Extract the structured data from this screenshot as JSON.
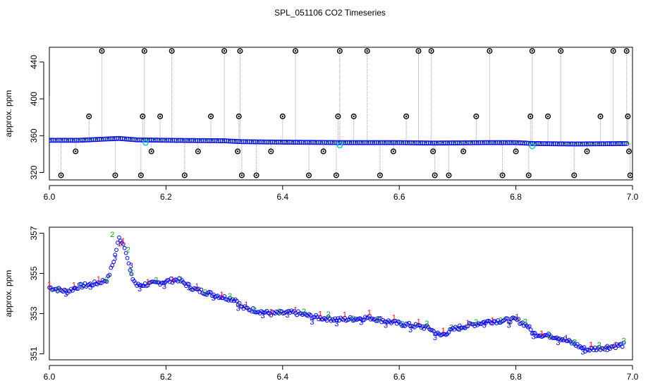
{
  "title": "SPL_051106  CO2 Timeseries",
  "colors": {
    "raw_marker": "#000000",
    "raw_drop": "#999999",
    "series_blue": "#0000ff",
    "series_green": "#00b000",
    "series_red": "#ff0000",
    "series_cyan": "#00cccc"
  },
  "chart_data": [
    {
      "type": "scatter",
      "title": "",
      "xlabel": "",
      "ylabel": "approx. ppm",
      "xlim": [
        6.0,
        7.0
      ],
      "ylim": [
        312,
        456
      ],
      "xticks": [
        6.0,
        6.2,
        6.4,
        6.6,
        6.8,
        7.0
      ],
      "xtick_labels": [
        "6.0",
        "6.2",
        "6.4",
        "6.6",
        "6.8",
        "7.0"
      ],
      "yticks": [
        320,
        360,
        400,
        440
      ],
      "ytick_labels": [
        "320",
        "360",
        "400",
        "440"
      ],
      "grid": false,
      "baseline": [
        {
          "x": 6.0,
          "y": 355
        },
        {
          "x": 6.05,
          "y": 355
        },
        {
          "x": 6.1,
          "y": 356.5
        },
        {
          "x": 6.12,
          "y": 357
        },
        {
          "x": 6.15,
          "y": 355.5
        },
        {
          "x": 6.2,
          "y": 355
        },
        {
          "x": 6.3,
          "y": 354.5
        },
        {
          "x": 6.33,
          "y": 353.5
        },
        {
          "x": 6.4,
          "y": 353
        },
        {
          "x": 6.5,
          "y": 352.5
        },
        {
          "x": 6.6,
          "y": 352.5
        },
        {
          "x": 6.66,
          "y": 352
        },
        {
          "x": 6.75,
          "y": 352.5
        },
        {
          "x": 6.8,
          "y": 352.5
        },
        {
          "x": 6.83,
          "y": 351.5
        },
        {
          "x": 6.9,
          "y": 351
        },
        {
          "x": 6.99,
          "y": 351.5
        }
      ],
      "outliers": [
        {
          "x": 6.02,
          "y": 317
        },
        {
          "x": 6.045,
          "y": 343
        },
        {
          "x": 6.068,
          "y": 381
        },
        {
          "x": 6.09,
          "y": 452
        },
        {
          "x": 6.113,
          "y": 317
        },
        {
          "x": 6.157,
          "y": 317
        },
        {
          "x": 6.16,
          "y": 381
        },
        {
          "x": 6.163,
          "y": 452
        },
        {
          "x": 6.175,
          "y": 343
        },
        {
          "x": 6.19,
          "y": 381
        },
        {
          "x": 6.21,
          "y": 452
        },
        {
          "x": 6.232,
          "y": 317
        },
        {
          "x": 6.255,
          "y": 343
        },
        {
          "x": 6.277,
          "y": 381
        },
        {
          "x": 6.3,
          "y": 452
        },
        {
          "x": 6.323,
          "y": 343
        },
        {
          "x": 6.325,
          "y": 381
        },
        {
          "x": 6.327,
          "y": 452
        },
        {
          "x": 6.33,
          "y": 317
        },
        {
          "x": 6.355,
          "y": 317
        },
        {
          "x": 6.38,
          "y": 343
        },
        {
          "x": 6.4,
          "y": 381
        },
        {
          "x": 6.422,
          "y": 452
        },
        {
          "x": 6.445,
          "y": 317
        },
        {
          "x": 6.47,
          "y": 343
        },
        {
          "x": 6.492,
          "y": 317
        },
        {
          "x": 6.495,
          "y": 381
        },
        {
          "x": 6.498,
          "y": 452
        },
        {
          "x": 6.522,
          "y": 381
        },
        {
          "x": 6.545,
          "y": 452
        },
        {
          "x": 6.567,
          "y": 317
        },
        {
          "x": 6.59,
          "y": 343
        },
        {
          "x": 6.612,
          "y": 381
        },
        {
          "x": 6.633,
          "y": 452
        },
        {
          "x": 6.655,
          "y": 452
        },
        {
          "x": 6.658,
          "y": 343
        },
        {
          "x": 6.661,
          "y": 317
        },
        {
          "x": 6.685,
          "y": 317
        },
        {
          "x": 6.71,
          "y": 343
        },
        {
          "x": 6.732,
          "y": 381
        },
        {
          "x": 6.755,
          "y": 452
        },
        {
          "x": 6.777,
          "y": 317
        },
        {
          "x": 6.8,
          "y": 343
        },
        {
          "x": 6.822,
          "y": 317
        },
        {
          "x": 6.825,
          "y": 381
        },
        {
          "x": 6.828,
          "y": 452
        },
        {
          "x": 6.855,
          "y": 381
        },
        {
          "x": 6.877,
          "y": 452
        },
        {
          "x": 6.9,
          "y": 317
        },
        {
          "x": 6.922,
          "y": 343
        },
        {
          "x": 6.945,
          "y": 381
        },
        {
          "x": 6.967,
          "y": 452
        },
        {
          "x": 6.99,
          "y": 452
        },
        {
          "x": 6.992,
          "y": 381
        },
        {
          "x": 6.994,
          "y": 343
        },
        {
          "x": 6.996,
          "y": 317
        }
      ]
    },
    {
      "type": "scatter",
      "title": "",
      "xlabel": "",
      "ylabel": "approx. ppm",
      "xlim": [
        6.0,
        7.0
      ],
      "ylim": [
        350.7,
        357.3
      ],
      "xticks": [
        6.0,
        6.2,
        6.4,
        6.6,
        6.8,
        7.0
      ],
      "xtick_labels": [
        "6.0",
        "6.2",
        "6.4",
        "6.6",
        "6.8",
        "7.0"
      ],
      "yticks": [
        351,
        353,
        355,
        357
      ],
      "ytick_labels": [
        "351",
        "353",
        "355",
        "357"
      ],
      "grid": false,
      "series_markers": [
        "o",
        "1",
        "2",
        "3"
      ],
      "trend": [
        {
          "x": 6.0,
          "y": 354.3
        },
        {
          "x": 6.03,
          "y": 354.1
        },
        {
          "x": 6.05,
          "y": 354.35
        },
        {
          "x": 6.08,
          "y": 354.5
        },
        {
          "x": 6.1,
          "y": 354.7
        },
        {
          "x": 6.11,
          "y": 355.6
        },
        {
          "x": 6.12,
          "y": 356.8
        },
        {
          "x": 6.13,
          "y": 356.3
        },
        {
          "x": 6.14,
          "y": 354.9
        },
        {
          "x": 6.15,
          "y": 354.4
        },
        {
          "x": 6.18,
          "y": 354.5
        },
        {
          "x": 6.22,
          "y": 354.7
        },
        {
          "x": 6.25,
          "y": 354.2
        },
        {
          "x": 6.3,
          "y": 353.8
        },
        {
          "x": 6.32,
          "y": 353.7
        },
        {
          "x": 6.33,
          "y": 353.3
        },
        {
          "x": 6.38,
          "y": 353.0
        },
        {
          "x": 6.42,
          "y": 353.05
        },
        {
          "x": 6.46,
          "y": 352.8
        },
        {
          "x": 6.5,
          "y": 352.7
        },
        {
          "x": 6.55,
          "y": 352.8
        },
        {
          "x": 6.6,
          "y": 352.5
        },
        {
          "x": 6.65,
          "y": 352.3
        },
        {
          "x": 6.67,
          "y": 351.9
        },
        {
          "x": 6.7,
          "y": 352.3
        },
        {
          "x": 6.75,
          "y": 352.6
        },
        {
          "x": 6.8,
          "y": 352.7
        },
        {
          "x": 6.82,
          "y": 352.4
        },
        {
          "x": 6.83,
          "y": 352.0
        },
        {
          "x": 6.87,
          "y": 351.85
        },
        {
          "x": 6.9,
          "y": 351.5
        },
        {
          "x": 6.92,
          "y": 351.2
        },
        {
          "x": 6.96,
          "y": 351.35
        },
        {
          "x": 6.985,
          "y": 351.45
        }
      ]
    }
  ]
}
